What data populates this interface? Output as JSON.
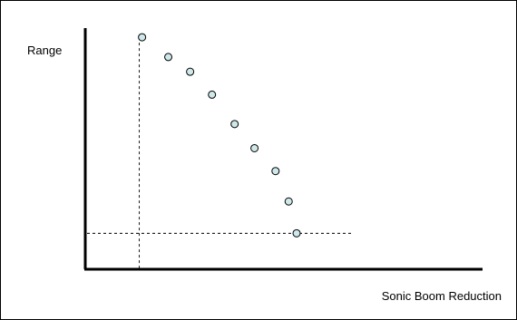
{
  "chart_data": {
    "type": "scatter",
    "title": "",
    "xlabel": "Sonic Boom Reduction",
    "ylabel": "Range",
    "xlim": [
      0,
      100
    ],
    "ylim": [
      0,
      100
    ],
    "grid": false,
    "axes_ticks": false,
    "points": [
      {
        "x": 14.3,
        "y": 96.2
      },
      {
        "x": 20.9,
        "y": 88.0
      },
      {
        "x": 26.4,
        "y": 81.9
      },
      {
        "x": 31.9,
        "y": 72.4
      },
      {
        "x": 37.6,
        "y": 60.2
      },
      {
        "x": 42.6,
        "y": 50.2
      },
      {
        "x": 47.9,
        "y": 40.7
      },
      {
        "x": 51.2,
        "y": 28.1
      },
      {
        "x": 53.2,
        "y": 14.9
      }
    ],
    "reference_lines": [
      {
        "orientation": "vertical",
        "x": 13.6
      },
      {
        "orientation": "horizontal",
        "y": 14.9
      }
    ],
    "point_fill": "#cfe8ea",
    "point_stroke": "#000000",
    "axis_color": "#000000"
  }
}
